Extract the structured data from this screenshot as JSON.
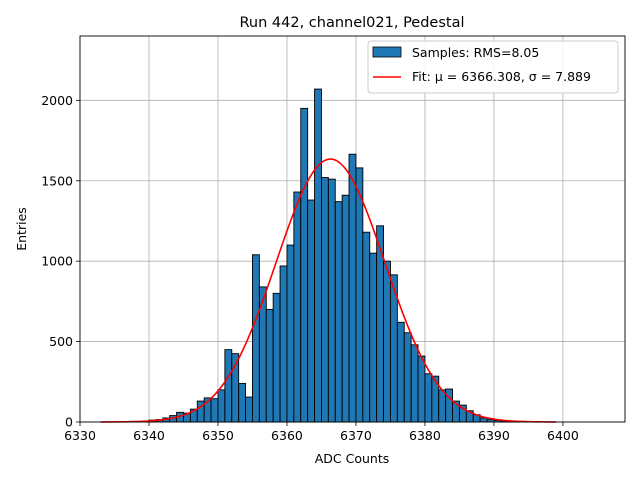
{
  "chart_data": {
    "type": "bar",
    "title": "Run 442, channel021, Pedestal",
    "xlabel": "ADC Counts",
    "ylabel": "Entries",
    "xlim": [
      6330,
      6409
    ],
    "ylim": [
      0,
      2400
    ],
    "xticks": [
      6330,
      6340,
      6350,
      6360,
      6370,
      6380,
      6390,
      6400
    ],
    "yticks": [
      0,
      500,
      1000,
      1500,
      2000
    ],
    "grid": true,
    "legend_position": "top-right",
    "histogram": {
      "name": "Samples: RMS=8.05",
      "color": "#1f77b4",
      "edgecolor": "#000000",
      "bin_edges": [
        6333,
        6334,
        6335,
        6336,
        6337,
        6338,
        6339,
        6340,
        6341,
        6342,
        6343,
        6344,
        6345,
        6346,
        6347,
        6348,
        6349,
        6350,
        6351,
        6352,
        6353,
        6354,
        6355,
        6356,
        6357,
        6358,
        6359,
        6360,
        6361,
        6362,
        6363,
        6364,
        6365,
        6366,
        6367,
        6368,
        6369,
        6370,
        6371,
        6372,
        6373,
        6374,
        6375,
        6376,
        6377,
        6378,
        6379,
        6380,
        6381,
        6382,
        6383,
        6384,
        6385,
        6386,
        6387,
        6388,
        6389,
        6390,
        6391,
        6392,
        6393,
        6394,
        6395,
        6396,
        6397,
        6398,
        6399
      ],
      "counts": [
        0,
        0,
        0,
        0,
        0,
        2,
        5,
        12,
        15,
        25,
        40,
        60,
        55,
        80,
        130,
        150,
        145,
        200,
        450,
        425,
        240,
        155,
        1040,
        840,
        700,
        800,
        970,
        1100,
        1430,
        1950,
        1380,
        2070,
        1520,
        1510,
        1370,
        1410,
        1665,
        1580,
        1180,
        1050,
        1220,
        1000,
        915,
        620,
        555,
        480,
        410,
        300,
        285,
        200,
        205,
        130,
        105,
        70,
        45,
        25,
        15,
        10,
        7,
        5,
        3,
        2,
        1,
        0,
        0,
        0
      ]
    },
    "series": [
      {
        "name": "Fit: μ = 6366.308, σ = 7.889",
        "color": "#ff0000",
        "function": "gaussian",
        "mu": 6366.308,
        "sigma": 7.889,
        "amplitude": 1635,
        "x_range": [
          6333,
          6399
        ]
      }
    ]
  }
}
